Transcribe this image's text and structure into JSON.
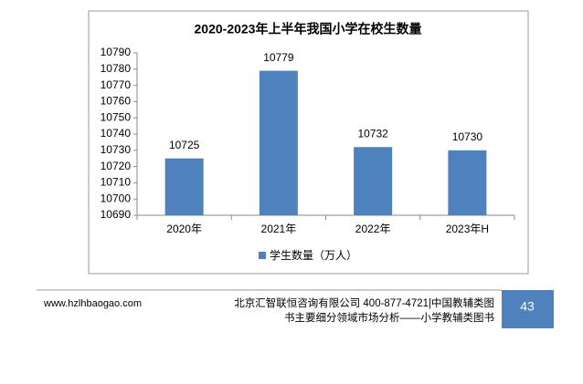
{
  "chart_data": {
    "type": "bar",
    "title": "2020-2023年上半年我国小学在校生数量",
    "categories": [
      "2020年",
      "2021年",
      "2022年",
      "2023年H"
    ],
    "series": [
      {
        "name": "学生数量（万人）",
        "color": "#4f81bd",
        "values": [
          10725,
          10779,
          10732,
          10730
        ]
      }
    ],
    "ylim": [
      10690,
      10790
    ],
    "yticks": [
      10690,
      10700,
      10710,
      10720,
      10730,
      10740,
      10750,
      10760,
      10770,
      10780,
      10790
    ],
    "grid": false,
    "legend": "bottom",
    "data_labels": true
  },
  "footer": {
    "website": "www.hzlhbaogao.com",
    "lines": [
      "北京汇智联恒咨询有限公司  400-877-4721|中国教辅类图",
      "书主要细分领域市场分析——小学教辅类图书"
    ],
    "page_number": "43"
  }
}
